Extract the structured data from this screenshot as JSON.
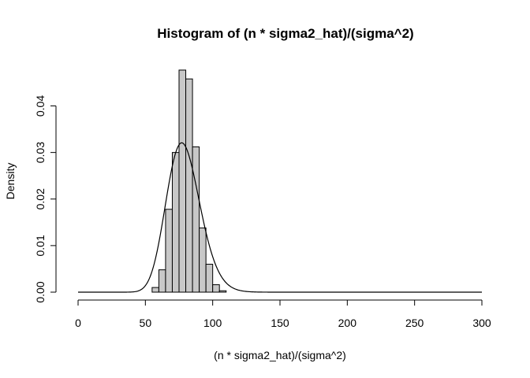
{
  "chart_data": {
    "type": "bar",
    "title": "Histogram of (n * sigma2_hat)/(sigma^2)",
    "xlabel": "(n * sigma2_hat)/(sigma^2)",
    "ylabel": "Density",
    "xlim": [
      0,
      300
    ],
    "ylim": [
      0,
      0.047
    ],
    "xticks": [
      0,
      50,
      100,
      150,
      200,
      250,
      300
    ],
    "yticks": [
      0.0,
      0.01,
      0.02,
      0.03,
      0.04
    ],
    "ytick_labels": [
      "0.00",
      "0.01",
      "0.02",
      "0.03",
      "0.04"
    ],
    "grid": false,
    "bins": [
      {
        "x0": 55,
        "x1": 60,
        "value": 0.001
      },
      {
        "x0": 60,
        "x1": 65,
        "value": 0.0048
      },
      {
        "x0": 65,
        "x1": 70,
        "value": 0.0178
      },
      {
        "x0": 70,
        "x1": 75,
        "value": 0.03
      },
      {
        "x0": 75,
        "x1": 80,
        "value": 0.0477
      },
      {
        "x0": 80,
        "x1": 85,
        "value": 0.0458
      },
      {
        "x0": 85,
        "x1": 90,
        "value": 0.0312
      },
      {
        "x0": 90,
        "x1": 95,
        "value": 0.0138
      },
      {
        "x0": 95,
        "x1": 100,
        "value": 0.006
      },
      {
        "x0": 100,
        "x1": 105,
        "value": 0.0016
      },
      {
        "x0": 105,
        "x1": 110,
        "value": 0.0003
      }
    ],
    "density_curve": {
      "distribution": "chi-squared",
      "df": 79,
      "x_range": [
        0,
        300
      ]
    }
  }
}
